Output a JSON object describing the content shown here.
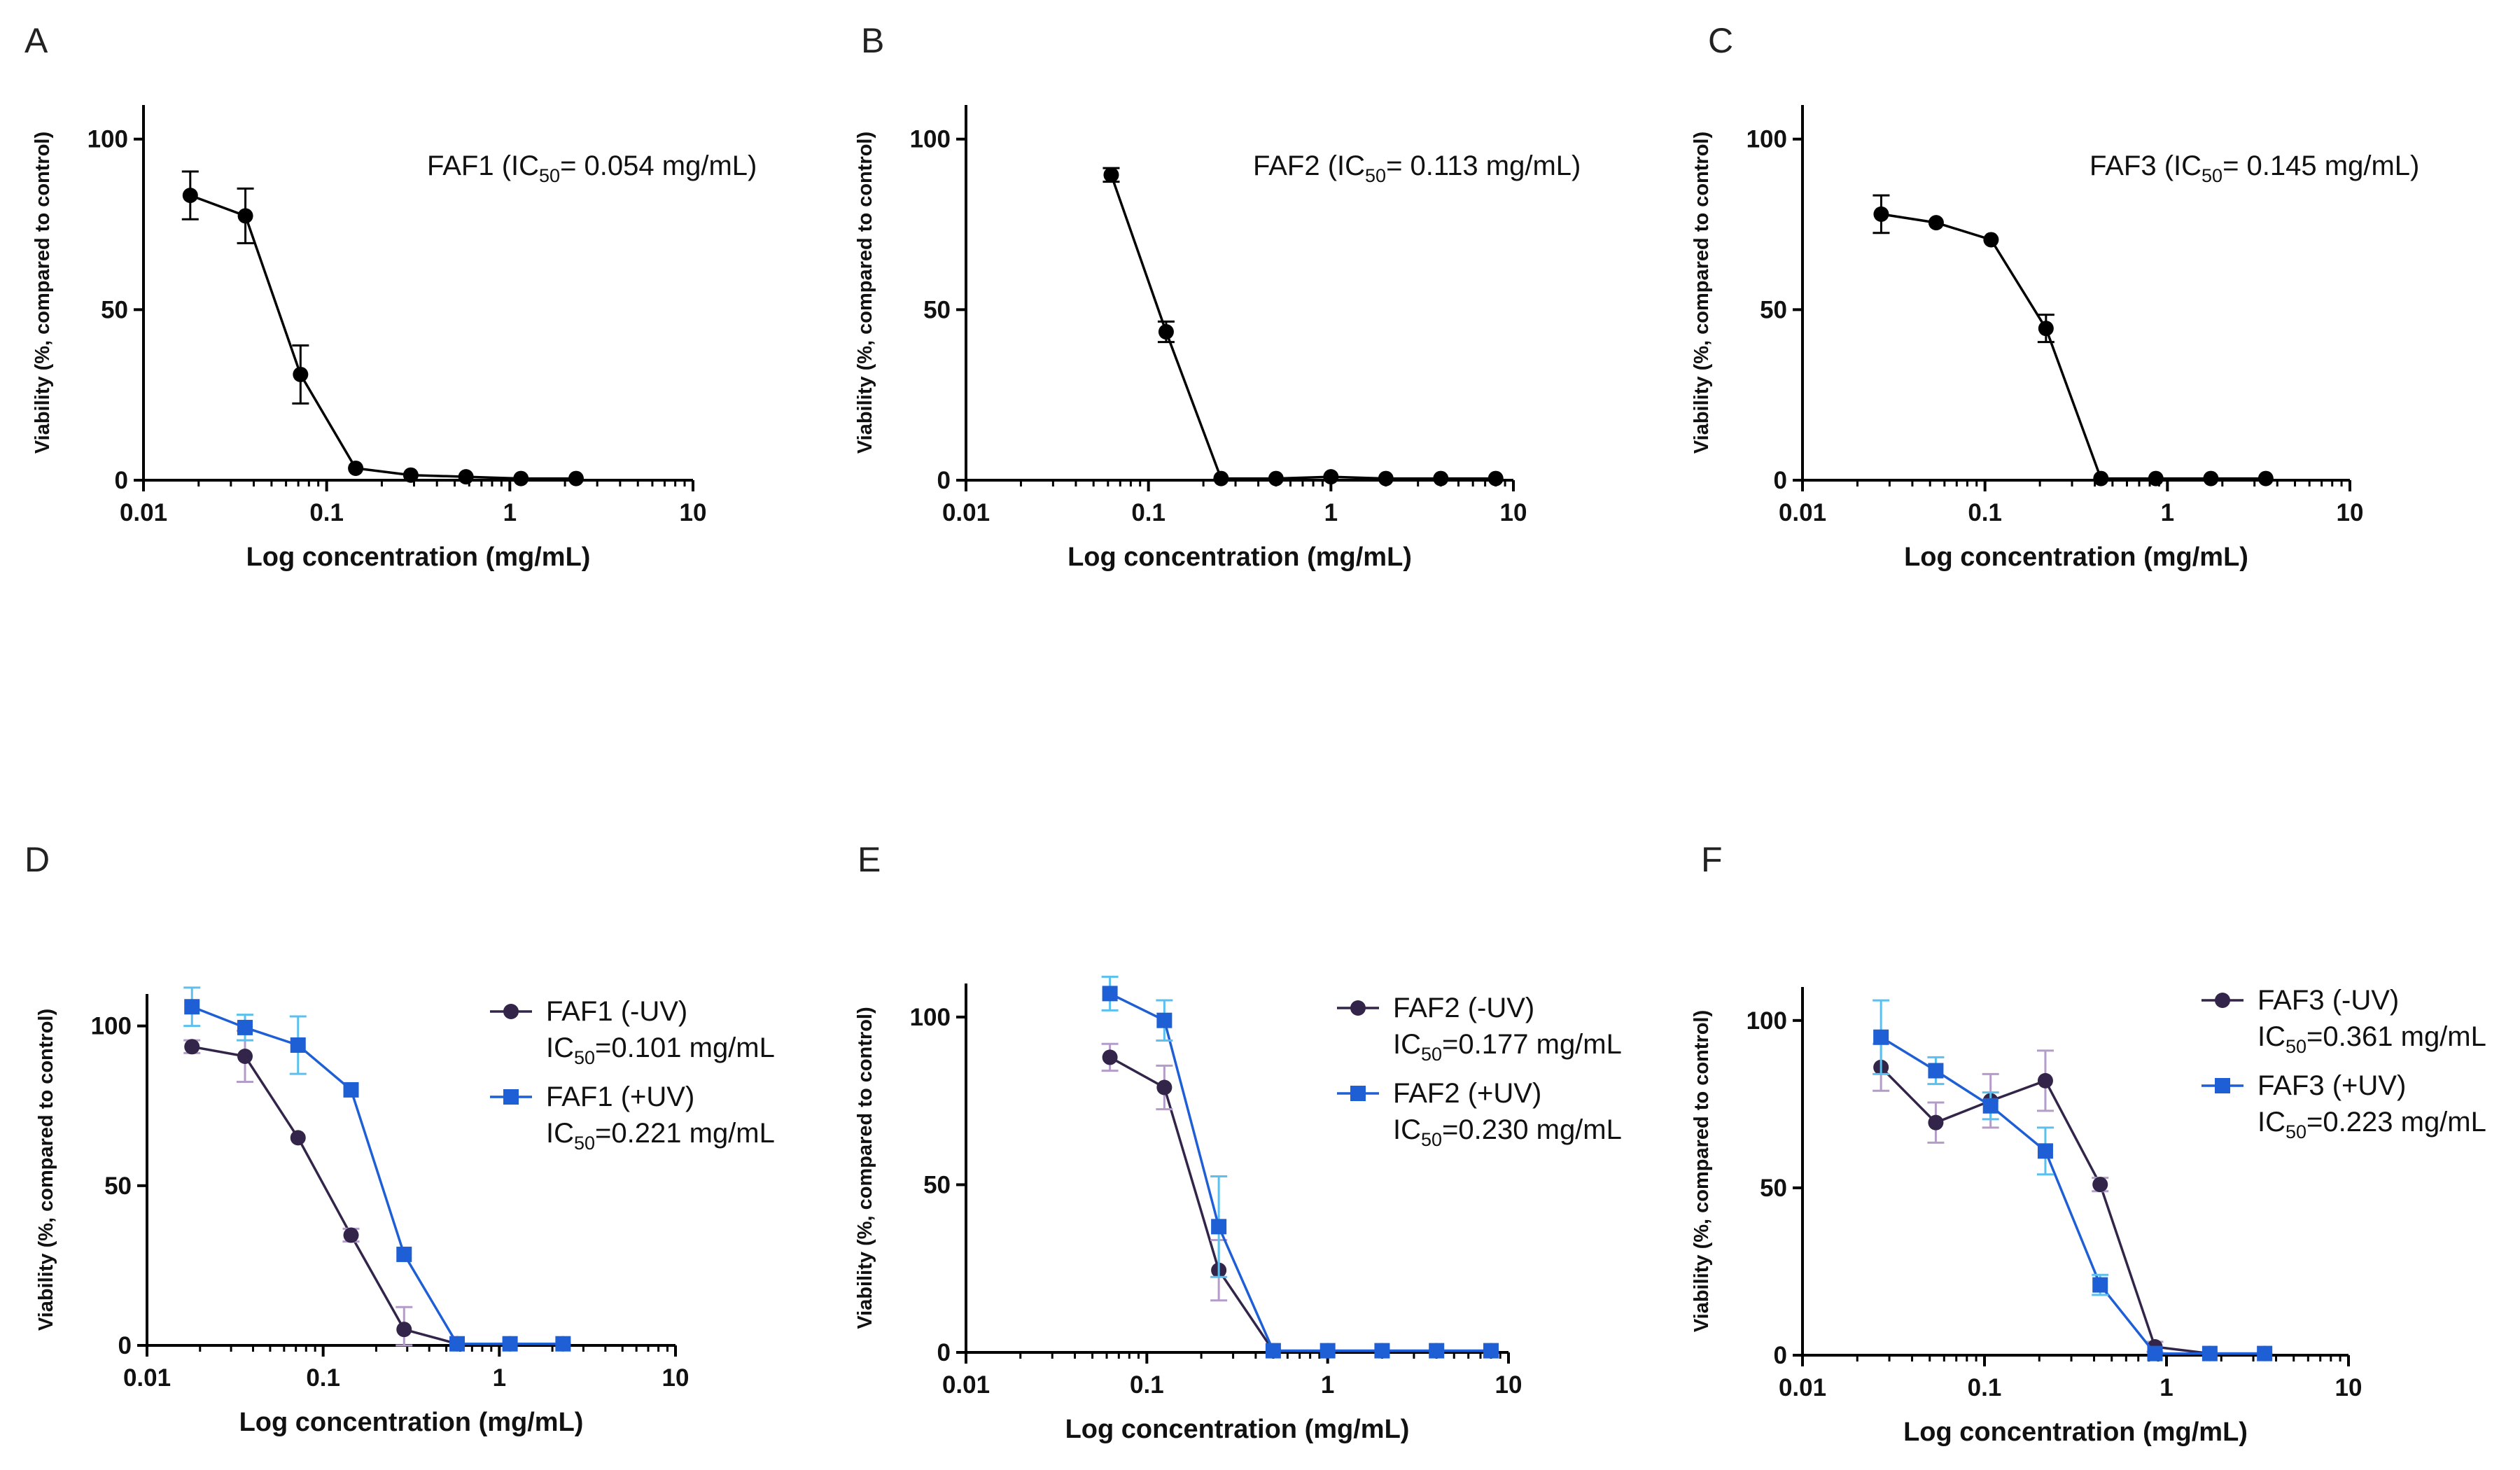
{
  "colors": {
    "single": "#000000",
    "minus_uv": "#33254a",
    "plus_uv": "#1f5fd6",
    "minus_uv_err": "#b49cc9",
    "plus_uv_err": "#5bc0ee"
  },
  "chart_data": [
    {
      "panel": "A",
      "type": "line",
      "xscale": "log",
      "xlim": [
        0.01,
        10
      ],
      "ylim": [
        0,
        110
      ],
      "ylabel": "Viability (%, compared to control)",
      "xlabel": "Log concentration (mg/mL)",
      "xticks": [
        {
          "value": 0.01,
          "label": "0.01"
        },
        {
          "value": 0.1,
          "label": "0.1"
        },
        {
          "value": 1,
          "label": "1"
        },
        {
          "value": 10,
          "label": "10"
        }
      ],
      "yticks": [
        {
          "value": 0,
          "label": "0"
        },
        {
          "value": 50,
          "label": "50"
        },
        {
          "value": 100,
          "label": "100"
        }
      ],
      "legend_position": "top-right",
      "series": [
        {
          "name": "FAF1",
          "ic50_label": "IC",
          "ic50_sub": "50",
          "ic50_text": "= 0.054 mg/mL",
          "legend_style": "inline",
          "color_key": "single",
          "err_color_key": "single",
          "marker": "circle",
          "x": [
            0.018,
            0.036,
            0.072,
            0.144,
            0.288,
            0.576,
            1.15,
            2.3
          ],
          "y": [
            83.5,
            77.5,
            31,
            3.5,
            1.5,
            1,
            0.5,
            0.5
          ],
          "err": [
            7,
            8,
            8.5,
            1,
            0.5,
            0.5,
            0.5,
            0.5
          ]
        }
      ]
    },
    {
      "panel": "B",
      "type": "line",
      "xscale": "log",
      "xlim": [
        0.01,
        10
      ],
      "ylim": [
        0,
        110
      ],
      "ylabel": "Viability (%, compared to control)",
      "xlabel": "Log concentration (mg/mL)",
      "xticks": [
        {
          "value": 0.01,
          "label": "0.01"
        },
        {
          "value": 0.1,
          "label": "0.1"
        },
        {
          "value": 1,
          "label": "1"
        },
        {
          "value": 10,
          "label": "10"
        }
      ],
      "yticks": [
        {
          "value": 0,
          "label": "0"
        },
        {
          "value": 50,
          "label": "50"
        },
        {
          "value": 100,
          "label": "100"
        }
      ],
      "legend_position": "top-right",
      "series": [
        {
          "name": "FAF2",
          "ic50_label": "IC",
          "ic50_sub": "50",
          "ic50_text": "= 0.113 mg/mL",
          "legend_style": "inline",
          "color_key": "single",
          "err_color_key": "single",
          "marker": "circle",
          "x": [
            0.0625,
            0.125,
            0.25,
            0.5,
            1,
            2,
            4,
            8
          ],
          "y": [
            89.5,
            43.5,
            0.5,
            0.5,
            1,
            0.5,
            0.5,
            0.5
          ],
          "err": [
            2,
            3,
            0.5,
            0.5,
            0.5,
            0.5,
            0.5,
            0.5
          ]
        }
      ]
    },
    {
      "panel": "C",
      "type": "line",
      "xscale": "log",
      "xlim": [
        0.01,
        10
      ],
      "ylim": [
        0,
        110
      ],
      "ylabel": "Viability (%, compared to control)",
      "xlabel": "Log concentration (mg/mL)",
      "xticks": [
        {
          "value": 0.01,
          "label": "0.01"
        },
        {
          "value": 0.1,
          "label": "0.1"
        },
        {
          "value": 1,
          "label": "1"
        },
        {
          "value": 10,
          "label": "10"
        }
      ],
      "yticks": [
        {
          "value": 0,
          "label": "0"
        },
        {
          "value": 50,
          "label": "50"
        },
        {
          "value": 100,
          "label": "100"
        }
      ],
      "legend_position": "top-right",
      "series": [
        {
          "name": "FAF3",
          "ic50_label": "IC",
          "ic50_sub": "50",
          "ic50_text": "= 0.145 mg/mL",
          "legend_style": "inline",
          "color_key": "single",
          "err_color_key": "single",
          "marker": "circle",
          "x": [
            0.027,
            0.054,
            0.108,
            0.216,
            0.432,
            0.864,
            1.73,
            3.46
          ],
          "y": [
            78,
            75.5,
            70.5,
            44.5,
            0.5,
            0.5,
            0.5,
            0.5
          ],
          "err": [
            5.5,
            1,
            1,
            4,
            0.5,
            0.5,
            0.5,
            0.5
          ]
        }
      ]
    },
    {
      "panel": "D",
      "type": "line",
      "xscale": "log",
      "xlim": [
        0.01,
        10
      ],
      "ylim": [
        0,
        110
      ],
      "ylabel": "Viability (%, compared to control)",
      "xlabel": "Log concentration (mg/mL)",
      "xticks": [
        {
          "value": 0.01,
          "label": "0.01"
        },
        {
          "value": 0.1,
          "label": "0.1"
        },
        {
          "value": 1,
          "label": "1"
        },
        {
          "value": 10,
          "label": "10"
        }
      ],
      "yticks": [
        {
          "value": 0,
          "label": "0"
        },
        {
          "value": 50,
          "label": "50"
        },
        {
          "value": 100,
          "label": "100"
        }
      ],
      "legend_position": "right",
      "series": [
        {
          "name": "FAF1 (-UV)",
          "ic50_label": "IC",
          "ic50_sub": "50",
          "ic50_text": "=0.101 mg/mL",
          "legend_style": "block",
          "color_key": "minus_uv",
          "err_color_key": "minus_uv_err",
          "marker": "circle",
          "x": [
            0.018,
            0.036,
            0.072,
            0.144,
            0.288,
            0.576,
            1.15,
            2.3
          ],
          "y": [
            93.5,
            90.5,
            65,
            34.5,
            5,
            0.5,
            0.5,
            0.5
          ],
          "err": [
            2,
            8,
            1,
            2,
            7,
            0.5,
            0.5,
            0.5
          ]
        },
        {
          "name": "FAF1 (+UV)",
          "ic50_label": "IC",
          "ic50_sub": "50",
          "ic50_text": "=0.221 mg/mL",
          "legend_style": "block",
          "color_key": "plus_uv",
          "err_color_key": "plus_uv_err",
          "marker": "square",
          "x": [
            0.018,
            0.036,
            0.072,
            0.144,
            0.288,
            0.576,
            1.15,
            2.3
          ],
          "y": [
            106,
            99.5,
            94,
            80,
            28.5,
            0.5,
            0.5,
            0.5
          ],
          "err": [
            6,
            4,
            9,
            0.5,
            0.5,
            0.5,
            0.5,
            0.5
          ]
        }
      ]
    },
    {
      "panel": "E",
      "type": "line",
      "xscale": "log",
      "xlim": [
        0.01,
        10
      ],
      "ylim": [
        0,
        110
      ],
      "ylabel": "Viability (%, compared to control)",
      "xlabel": "Log concentration (mg/mL)",
      "xticks": [
        {
          "value": 0.01,
          "label": "0.01"
        },
        {
          "value": 0.1,
          "label": "0.1"
        },
        {
          "value": 1,
          "label": "1"
        },
        {
          "value": 10,
          "label": "10"
        }
      ],
      "yticks": [
        {
          "value": 0,
          "label": "0"
        },
        {
          "value": 50,
          "label": "50"
        },
        {
          "value": 100,
          "label": "100"
        }
      ],
      "legend_position": "right",
      "series": [
        {
          "name": "FAF2 (-UV)",
          "ic50_label": "IC",
          "ic50_sub": "50",
          "ic50_text": "=0.177 mg/mL",
          "legend_style": "block",
          "color_key": "minus_uv",
          "err_color_key": "minus_uv_err",
          "marker": "circle",
          "x": [
            0.0625,
            0.125,
            0.25,
            0.5,
            1,
            2,
            4,
            8
          ],
          "y": [
            88,
            79,
            24.5,
            0.5,
            0.5,
            0.5,
            0.5,
            0.5
          ],
          "err": [
            4,
            6.5,
            9,
            0.5,
            0.5,
            0.5,
            0.5,
            0.5
          ]
        },
        {
          "name": "FAF2 (+UV)",
          "ic50_label": "IC",
          "ic50_sub": "50",
          "ic50_text": "=0.230 mg/mL",
          "legend_style": "block",
          "color_key": "plus_uv",
          "err_color_key": "plus_uv_err",
          "marker": "square",
          "x": [
            0.0625,
            0.125,
            0.25,
            0.5,
            1,
            2,
            4,
            8
          ],
          "y": [
            107,
            99,
            37.5,
            0.5,
            0.5,
            0.5,
            0.5,
            0.5
          ],
          "err": [
            5,
            6,
            15,
            0.5,
            0.5,
            0.5,
            0.5,
            0.5
          ]
        }
      ]
    },
    {
      "panel": "F",
      "type": "line",
      "xscale": "log",
      "xlim": [
        0.01,
        10
      ],
      "ylim": [
        0,
        110
      ],
      "ylabel": "Viability (%, compared to control)",
      "xlabel": "Log concentration (mg/mL)",
      "xticks": [
        {
          "value": 0.01,
          "label": "0.01"
        },
        {
          "value": 0.1,
          "label": "0.1"
        },
        {
          "value": 1,
          "label": "1"
        },
        {
          "value": 10,
          "label": "10"
        }
      ],
      "yticks": [
        {
          "value": 0,
          "label": "0"
        },
        {
          "value": 50,
          "label": "50"
        },
        {
          "value": 100,
          "label": "100"
        }
      ],
      "legend_position": "top-right",
      "series": [
        {
          "name": "FAF3 (-UV)",
          "ic50_label": "IC",
          "ic50_sub": "50",
          "ic50_text": "=0.361 mg/mL",
          "legend_style": "block",
          "color_key": "minus_uv",
          "err_color_key": "minus_uv_err",
          "marker": "circle",
          "x": [
            0.027,
            0.054,
            0.108,
            0.216,
            0.432,
            0.864,
            1.73,
            3.46
          ],
          "y": [
            86,
            69.5,
            76,
            82,
            51,
            2.5,
            0.5,
            0.5
          ],
          "err": [
            7,
            6,
            8,
            9,
            2,
            1.5,
            0.5,
            1
          ]
        },
        {
          "name": "FAF3 (+UV)",
          "ic50_label": "IC",
          "ic50_sub": "50",
          "ic50_text": "=0.223 mg/mL",
          "legend_style": "block",
          "color_key": "plus_uv",
          "err_color_key": "plus_uv_err",
          "marker": "square",
          "x": [
            0.027,
            0.054,
            0.108,
            0.216,
            0.432,
            0.864,
            1.73,
            3.46
          ],
          "y": [
            95,
            85,
            74.5,
            61,
            21,
            0.5,
            0.5,
            0.5
          ],
          "err": [
            11,
            4,
            4,
            7,
            3,
            0.5,
            0.5,
            0.5
          ]
        }
      ]
    }
  ]
}
